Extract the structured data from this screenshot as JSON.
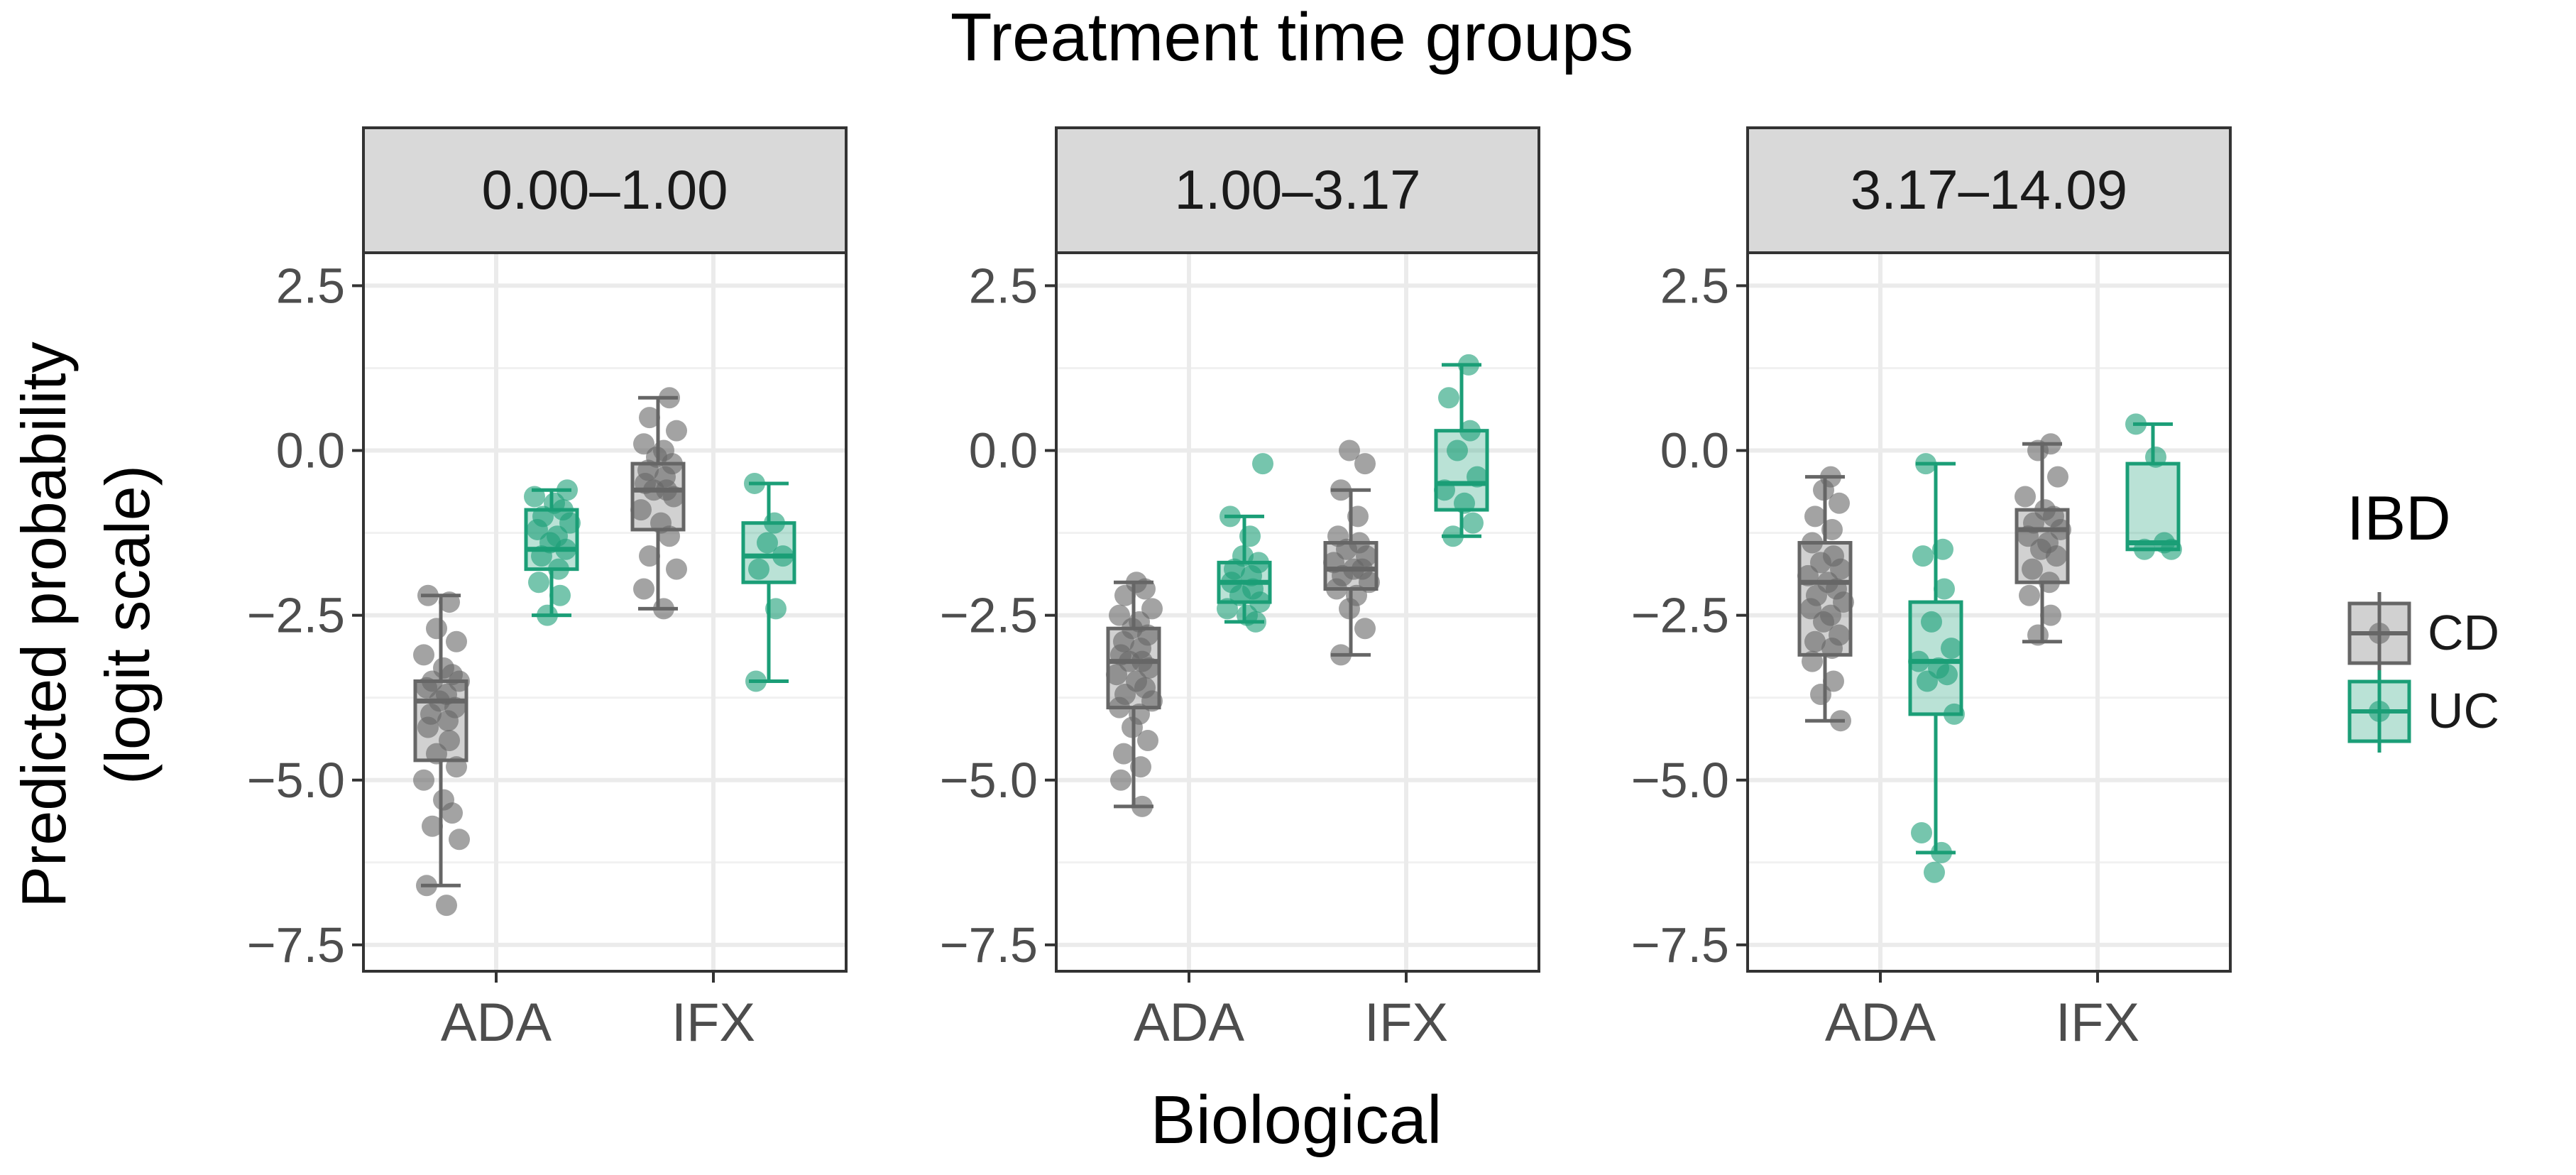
{
  "chart_data": {
    "type": "boxplot",
    "title": "Treatment time groups",
    "xlabel": "Biological",
    "ylabel_line1": "Predicted probability",
    "ylabel_line2": "(logit scale)",
    "ylim": [
      -7.9,
      3.0
    ],
    "yticks": [
      2.5,
      0.0,
      -2.5,
      -5.0,
      -7.5
    ],
    "ytick_labels": [
      "2.5",
      "0.0",
      "−2.5",
      "−5.0",
      "−7.5"
    ],
    "categories": [
      "ADA",
      "IFX"
    ],
    "legend": {
      "title": "IBD",
      "entries": [
        {
          "name": "CD",
          "color": "#666666"
        },
        {
          "name": "UC",
          "color": "#1B9E77"
        }
      ]
    },
    "colors": {
      "CD": "#666666",
      "UC": "#1B9E77"
    },
    "facets": [
      {
        "label": "0.00–1.00",
        "groups": [
          {
            "biological": "ADA",
            "ibd": "CD",
            "min": -6.6,
            "q1": -4.7,
            "median": -3.8,
            "q3": -3.5,
            "max": -2.2,
            "points": [
              -2.2,
              -2.3,
              -2.7,
              -2.9,
              -3.1,
              -3.3,
              -3.4,
              -3.5,
              -3.5,
              -3.6,
              -3.7,
              -3.8,
              -3.9,
              -4.0,
              -4.1,
              -4.2,
              -4.4,
              -4.6,
              -4.8,
              -5.0,
              -5.3,
              -5.5,
              -5.7,
              -5.9,
              -6.6,
              -6.9
            ]
          },
          {
            "biological": "ADA",
            "ibd": "UC",
            "min": -2.5,
            "q1": -1.8,
            "median": -1.5,
            "q3": -0.9,
            "max": -0.6,
            "points": [
              -0.6,
              -0.7,
              -0.8,
              -0.9,
              -1.0,
              -1.1,
              -1.2,
              -1.3,
              -1.4,
              -1.5,
              -1.6,
              -1.8,
              -2.0,
              -2.2,
              -2.5
            ]
          },
          {
            "biological": "IFX",
            "ibd": "CD",
            "min": -2.4,
            "q1": -1.2,
            "median": -0.6,
            "q3": -0.2,
            "max": 0.8,
            "points": [
              0.8,
              0.5,
              0.3,
              0.1,
              0.0,
              -0.1,
              -0.2,
              -0.3,
              -0.4,
              -0.5,
              -0.6,
              -0.6,
              -0.7,
              -0.9,
              -1.1,
              -1.3,
              -1.6,
              -1.8,
              -2.1,
              -2.4
            ]
          },
          {
            "biological": "IFX",
            "ibd": "UC",
            "min": -3.5,
            "q1": -2.0,
            "median": -1.6,
            "q3": -1.1,
            "max": -0.5,
            "points": [
              -0.5,
              -1.1,
              -1.4,
              -1.6,
              -1.8,
              -2.4,
              -3.5
            ]
          }
        ]
      },
      {
        "label": "1.00–3.17",
        "groups": [
          {
            "biological": "ADA",
            "ibd": "CD",
            "min": -5.4,
            "q1": -3.9,
            "median": -3.2,
            "q3": -2.7,
            "max": -2.0,
            "points": [
              -2.0,
              -2.1,
              -2.2,
              -2.4,
              -2.5,
              -2.6,
              -2.7,
              -2.8,
              -2.9,
              -3.0,
              -3.1,
              -3.2,
              -3.2,
              -3.3,
              -3.4,
              -3.5,
              -3.6,
              -3.7,
              -3.8,
              -3.9,
              -4.0,
              -4.2,
              -4.4,
              -4.6,
              -4.8,
              -5.0,
              -5.4
            ]
          },
          {
            "biological": "ADA",
            "ibd": "UC",
            "min": -2.6,
            "q1": -2.3,
            "median": -2.0,
            "q3": -1.7,
            "max": -1.0,
            "points": [
              -0.2,
              -1.0,
              -1.3,
              -1.6,
              -1.7,
              -1.8,
              -1.9,
              -2.0,
              -2.1,
              -2.2,
              -2.3,
              -2.4,
              -2.5,
              -2.6
            ]
          },
          {
            "biological": "IFX",
            "ibd": "CD",
            "min": -3.1,
            "q1": -2.1,
            "median": -1.8,
            "q3": -1.4,
            "max": -0.6,
            "points": [
              0.0,
              -0.2,
              -0.6,
              -1.0,
              -1.3,
              -1.4,
              -1.5,
              -1.6,
              -1.7,
              -1.8,
              -1.8,
              -1.9,
              -2.0,
              -2.1,
              -2.2,
              -2.4,
              -2.7,
              -3.1
            ]
          },
          {
            "biological": "IFX",
            "ibd": "UC",
            "min": -1.3,
            "q1": -0.9,
            "median": -0.5,
            "q3": 0.3,
            "max": 1.3,
            "points": [
              1.3,
              0.8,
              0.3,
              0.0,
              -0.4,
              -0.6,
              -0.8,
              -1.1,
              -1.3
            ]
          }
        ]
      },
      {
        "label": "3.17–14.09",
        "groups": [
          {
            "biological": "ADA",
            "ibd": "CD",
            "min": -4.1,
            "q1": -3.1,
            "median": -2.0,
            "q3": -1.4,
            "max": -0.4,
            "points": [
              -0.4,
              -0.6,
              -0.8,
              -1.0,
              -1.2,
              -1.4,
              -1.6,
              -1.7,
              -1.8,
              -1.9,
              -2.0,
              -2.1,
              -2.2,
              -2.3,
              -2.4,
              -2.5,
              -2.6,
              -2.8,
              -2.9,
              -3.0,
              -3.2,
              -3.5,
              -3.7,
              -4.1
            ]
          },
          {
            "biological": "ADA",
            "ibd": "UC",
            "min": -6.1,
            "q1": -4.0,
            "median": -3.2,
            "q3": -2.3,
            "max": -0.2,
            "points": [
              -0.2,
              -1.5,
              -1.6,
              -2.1,
              -2.6,
              -3.0,
              -3.2,
              -3.3,
              -3.4,
              -3.5,
              -4.0,
              -5.8,
              -6.1,
              -6.4
            ]
          },
          {
            "biological": "IFX",
            "ibd": "CD",
            "min": -2.9,
            "q1": -2.0,
            "median": -1.2,
            "q3": -0.9,
            "max": 0.1,
            "points": [
              0.1,
              0.0,
              -0.4,
              -0.7,
              -0.9,
              -1.0,
              -1.1,
              -1.2,
              -1.3,
              -1.4,
              -1.5,
              -1.6,
              -1.8,
              -2.0,
              -2.2,
              -2.5,
              -2.8
            ]
          },
          {
            "biological": "IFX",
            "ibd": "UC",
            "min": -1.5,
            "q1": -1.5,
            "median": -1.4,
            "q3": -0.2,
            "max": 0.4,
            "points": [
              0.4,
              -0.1,
              -1.4,
              -1.5,
              -1.5
            ]
          }
        ]
      }
    ]
  }
}
